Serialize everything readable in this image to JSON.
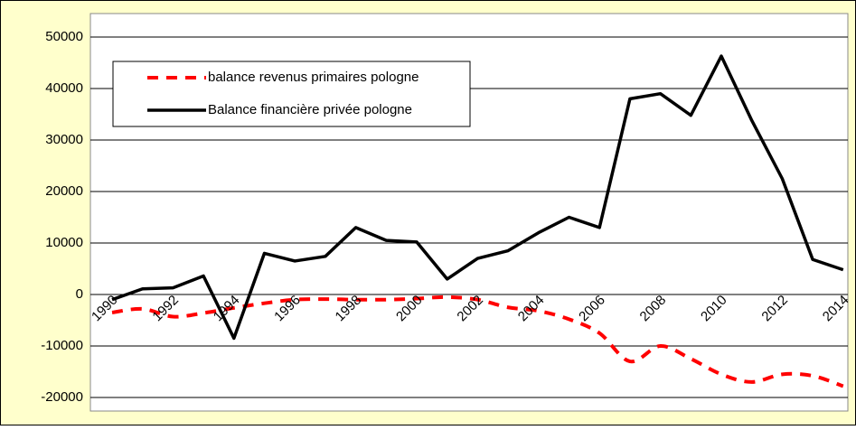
{
  "chart_data": {
    "type": "line",
    "categories": [
      "1990",
      null,
      "1992",
      null,
      "1994",
      null,
      "1996",
      null,
      "1998",
      null,
      "2000",
      null,
      "2002",
      null,
      "2004",
      null,
      "2006",
      null,
      "2008",
      null,
      "2010",
      null,
      "2012",
      null,
      "2014"
    ],
    "series": [
      {
        "name": "balance revenus primaires pologne",
        "color": "#ff0000",
        "dashed": true,
        "smooth": true,
        "values": [
          -3500,
          -2800,
          -4300,
          -3600,
          -2600,
          -1700,
          -1000,
          -900,
          -1000,
          -1000,
          -800,
          -500,
          -1000,
          -2500,
          -3200,
          -4800,
          -7500,
          -13000,
          -10000,
          -12500,
          -15500,
          -17000,
          -15500,
          -15800,
          -17800
        ]
      },
      {
        "name": "Balance financière privée pologne",
        "color": "#000000",
        "dashed": false,
        "smooth": false,
        "values": [
          -1000,
          1100,
          1300,
          3600,
          -8500,
          8000,
          6500,
          7400,
          13000,
          10500,
          10200,
          3000,
          7000,
          8500,
          12000,
          15000,
          13000,
          38000,
          39000,
          34800,
          46300,
          33800,
          22500,
          6800,
          4800
        ]
      }
    ],
    "ylim": [
      -20000,
      50000
    ],
    "yticks": [
      -20000,
      -10000,
      0,
      10000,
      20000,
      30000,
      40000,
      50000
    ],
    "grid": true,
    "legend": "top-left"
  }
}
